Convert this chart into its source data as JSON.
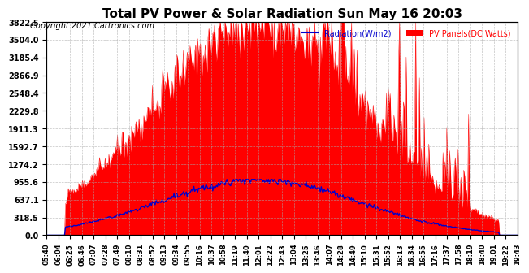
{
  "title": "Total PV Power & Solar Radiation Sun May 16 20:03",
  "copyright": "Copyright 2021 Cartronics.com",
  "legend_radiation": "Radiation(W/m2)",
  "legend_pv": "PV Panels(DC Watts)",
  "yticks": [
    0.0,
    318.5,
    637.1,
    955.6,
    1274.2,
    1592.7,
    1911.3,
    2229.8,
    2548.4,
    2866.9,
    3185.4,
    3504.0,
    3822.5
  ],
  "ymax": 3822.5,
  "background_color": "#ffffff",
  "grid_color": "#aaaaaa",
  "pv_color": "#ff0000",
  "radiation_color": "#0000cc",
  "xtick_labels": [
    "05:40",
    "06:04",
    "06:25",
    "06:46",
    "07:07",
    "07:28",
    "07:49",
    "08:10",
    "08:31",
    "08:52",
    "09:13",
    "09:34",
    "09:55",
    "10:16",
    "10:37",
    "10:58",
    "11:19",
    "11:40",
    "12:01",
    "12:22",
    "12:43",
    "13:04",
    "13:25",
    "13:46",
    "14:07",
    "14:28",
    "14:49",
    "15:10",
    "15:31",
    "15:52",
    "16:13",
    "16:34",
    "16:55",
    "17:16",
    "17:37",
    "17:58",
    "18:19",
    "18:40",
    "19:01",
    "19:22",
    "19:43"
  ],
  "num_points": 500
}
